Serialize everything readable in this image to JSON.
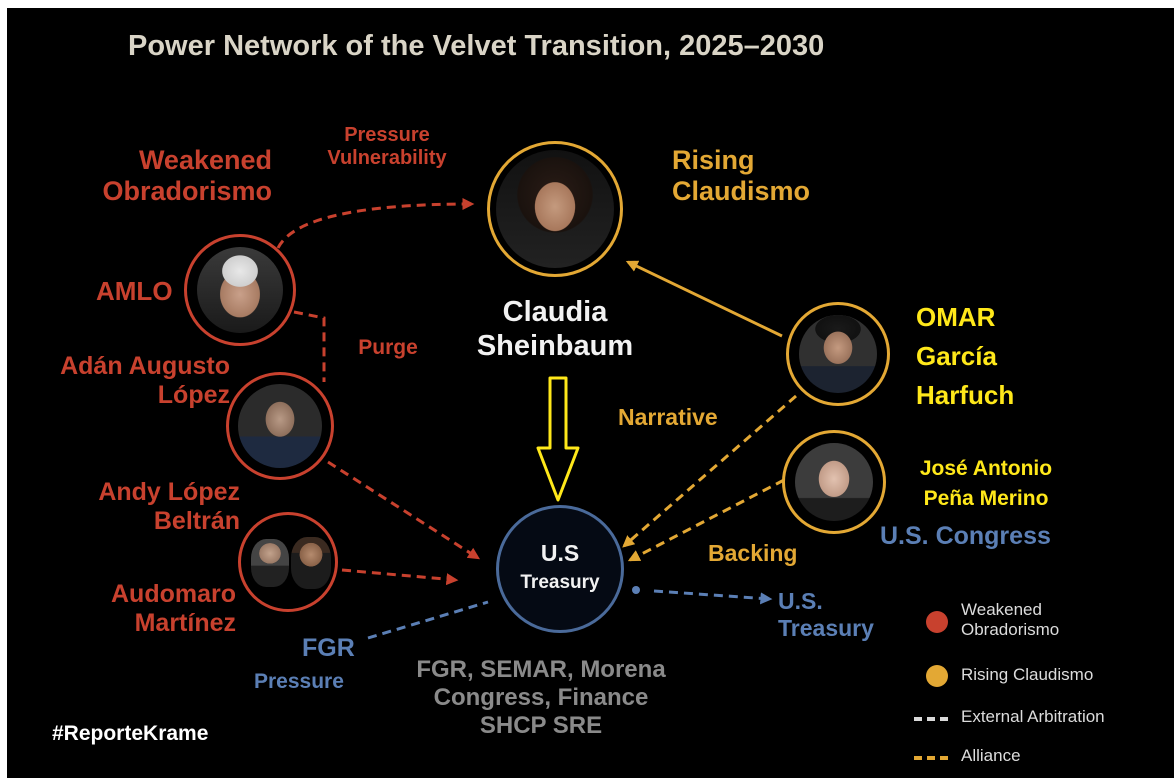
{
  "title": "Power Network of the Velvet Transition, 2025–2030",
  "colors": {
    "weakened": "#c8412e",
    "rising": "#e3a834",
    "external": "#4a6a9a",
    "highlight": "#ffe81a",
    "background": "#000000"
  },
  "factions": {
    "weakened_line1": "Weakened",
    "weakened_line2": "Obradorismo",
    "rising_line1": "Rising",
    "rising_line2": "Claudismo"
  },
  "people": {
    "amlo": "AMLO",
    "adan_line1": "Adán Augusto",
    "adan_line2": "López",
    "andy_line1": "Andy López",
    "andy_line2": "Beltrán",
    "audomaro_line1": "Audomaro",
    "audomaro_line2": "Martínez",
    "claudia_line1": "Claudia",
    "claudia_line2": "Sheinbaum",
    "omar_line1": "OMAR",
    "omar_line2": "García",
    "omar_line3": "Harfuch",
    "pena_line1": "José Antonio",
    "pena_line2": "Peña Merino"
  },
  "hub": {
    "line1": "U.S",
    "line2": "Treasury"
  },
  "edge_labels": {
    "pressure_top_line1": "Pressure",
    "pressure_top_line2": "Vulnerability",
    "purge": "Purge",
    "narrative": "Narrative",
    "backing": "Backing",
    "fgr": "FGR",
    "fgr_pressure": "Pressure",
    "us_congress": "U.S. Congress",
    "us_treasury_line1": "U.S.",
    "us_treasury_line2": "Treasury"
  },
  "institutions": {
    "line1": "FGR, SEMAR, Morena",
    "line2": "Congress, Finance",
    "line3": "SHCP SRE"
  },
  "legend": {
    "weakened": "Weakened",
    "weakened_line2": "Obradorismo",
    "rising": "Rising Claudismo",
    "external": "External Arbitration",
    "alliance": "Alliance"
  },
  "hashtag": "#ReporteKrame"
}
